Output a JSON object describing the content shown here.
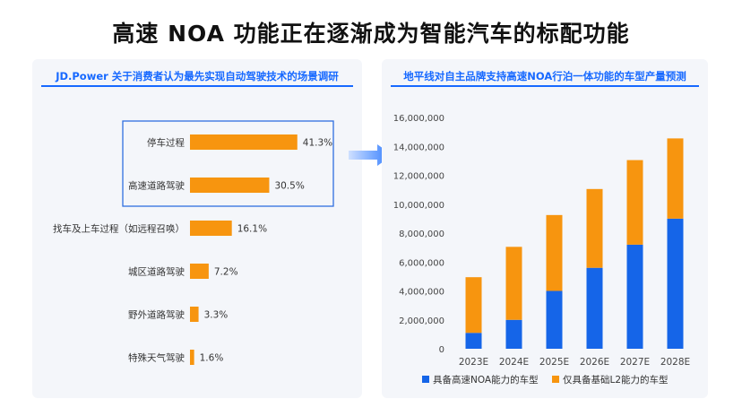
{
  "page_title": "高速 NOA 功能正在逐渐成为智能汽车的标配功能",
  "left_panel": {
    "title": "JD.Power 关于消费者认为最先实现自动驾驶技术的场景调研"
  },
  "right_panel": {
    "title": "地平线对自主品牌支持高速NOA行泊一体功能的车型产量预测"
  },
  "colors": {
    "accent": "#1769ff",
    "orange": "#f7950f",
    "blue": "#1565e8",
    "highlight_box": "#2f6fe0"
  },
  "chart_data": [
    {
      "type": "bar",
      "orientation": "horizontal",
      "title": "JD.Power 关于消费者认为最先实现自动驾驶技术的场景调研",
      "categories": [
        "停车过程",
        "高速道路驾驶",
        "找车及上车过程（如远程召唤）",
        "城区道路驾驶",
        "野外道路驾驶",
        "特殊天气驾驶"
      ],
      "values": [
        41.3,
        30.5,
        16.1,
        7.2,
        3.3,
        1.6
      ],
      "value_labels": [
        "41.3%",
        "30.5%",
        "16.1%",
        "7.2%",
        "3.3%",
        "1.6%"
      ],
      "unit": "%",
      "highlighted_categories": [
        "停车过程",
        "高速道路驾驶"
      ],
      "grid": false
    },
    {
      "type": "bar",
      "stacked": true,
      "title": "地平线对自主品牌支持高速NOA行泊一体功能的车型产量预测",
      "categories": [
        "2023E",
        "2024E",
        "2025E",
        "2026E",
        "2027E",
        "2028E"
      ],
      "series": [
        {
          "name": "具备高速NOA能力的车型",
          "values": [
            1100000,
            2000000,
            4000000,
            5600000,
            7200000,
            9000000
          ]
        },
        {
          "name": "仅具备基础L2能力的车型",
          "values": [
            3850000,
            5050000,
            5250000,
            5450000,
            5850000,
            5550000
          ]
        }
      ],
      "ylim": [
        0,
        16000000
      ],
      "yticks": [
        0,
        2000000,
        4000000,
        6000000,
        8000000,
        10000000,
        12000000,
        14000000,
        16000000
      ],
      "ytick_labels": [
        "0",
        "2,000,000",
        "4,000,000",
        "6,000,000",
        "8,000,000",
        "10,000,000",
        "12,000,000",
        "14,000,000",
        "16,000,000"
      ],
      "legend_position": "bottom",
      "grid": false
    }
  ]
}
